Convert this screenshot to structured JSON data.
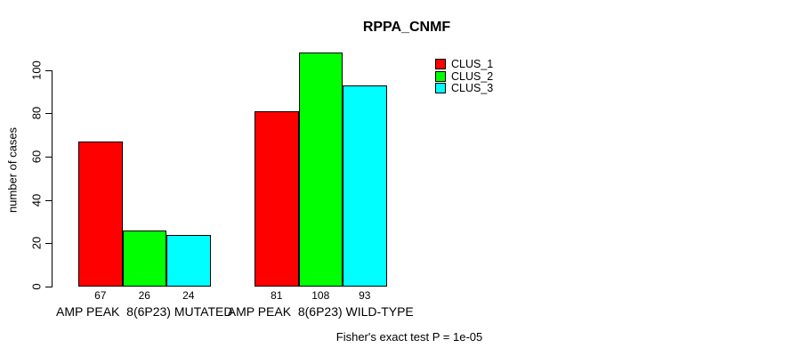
{
  "chart_data": {
    "type": "bar",
    "title": "RPPA_CNMF",
    "xlabel": "",
    "ylabel": "number of cases",
    "categories": [
      "AMP PEAK  8(6P23) MUTATED",
      "AMP PEAK  8(6P23) WILD-TYPE"
    ],
    "series": [
      {
        "name": "CLUS_1",
        "color": "#ff0000",
        "values": [
          67,
          81
        ]
      },
      {
        "name": "CLUS_2",
        "color": "#00ff00",
        "values": [
          26,
          108
        ]
      },
      {
        "name": "CLUS_3",
        "color": "#00ffff",
        "values": [
          24,
          93
        ]
      }
    ],
    "bar_value_labels": [
      [
        67,
        26,
        24
      ],
      [
        81,
        108,
        93
      ]
    ],
    "ylim": [
      0,
      100
    ],
    "yticks": [
      0,
      20,
      40,
      60,
      80,
      100
    ],
    "grid": false,
    "legend_position": "right-outside",
    "bar_edge_color": "#000000",
    "annotation": "Fisher's exact test P = 1e-05"
  }
}
